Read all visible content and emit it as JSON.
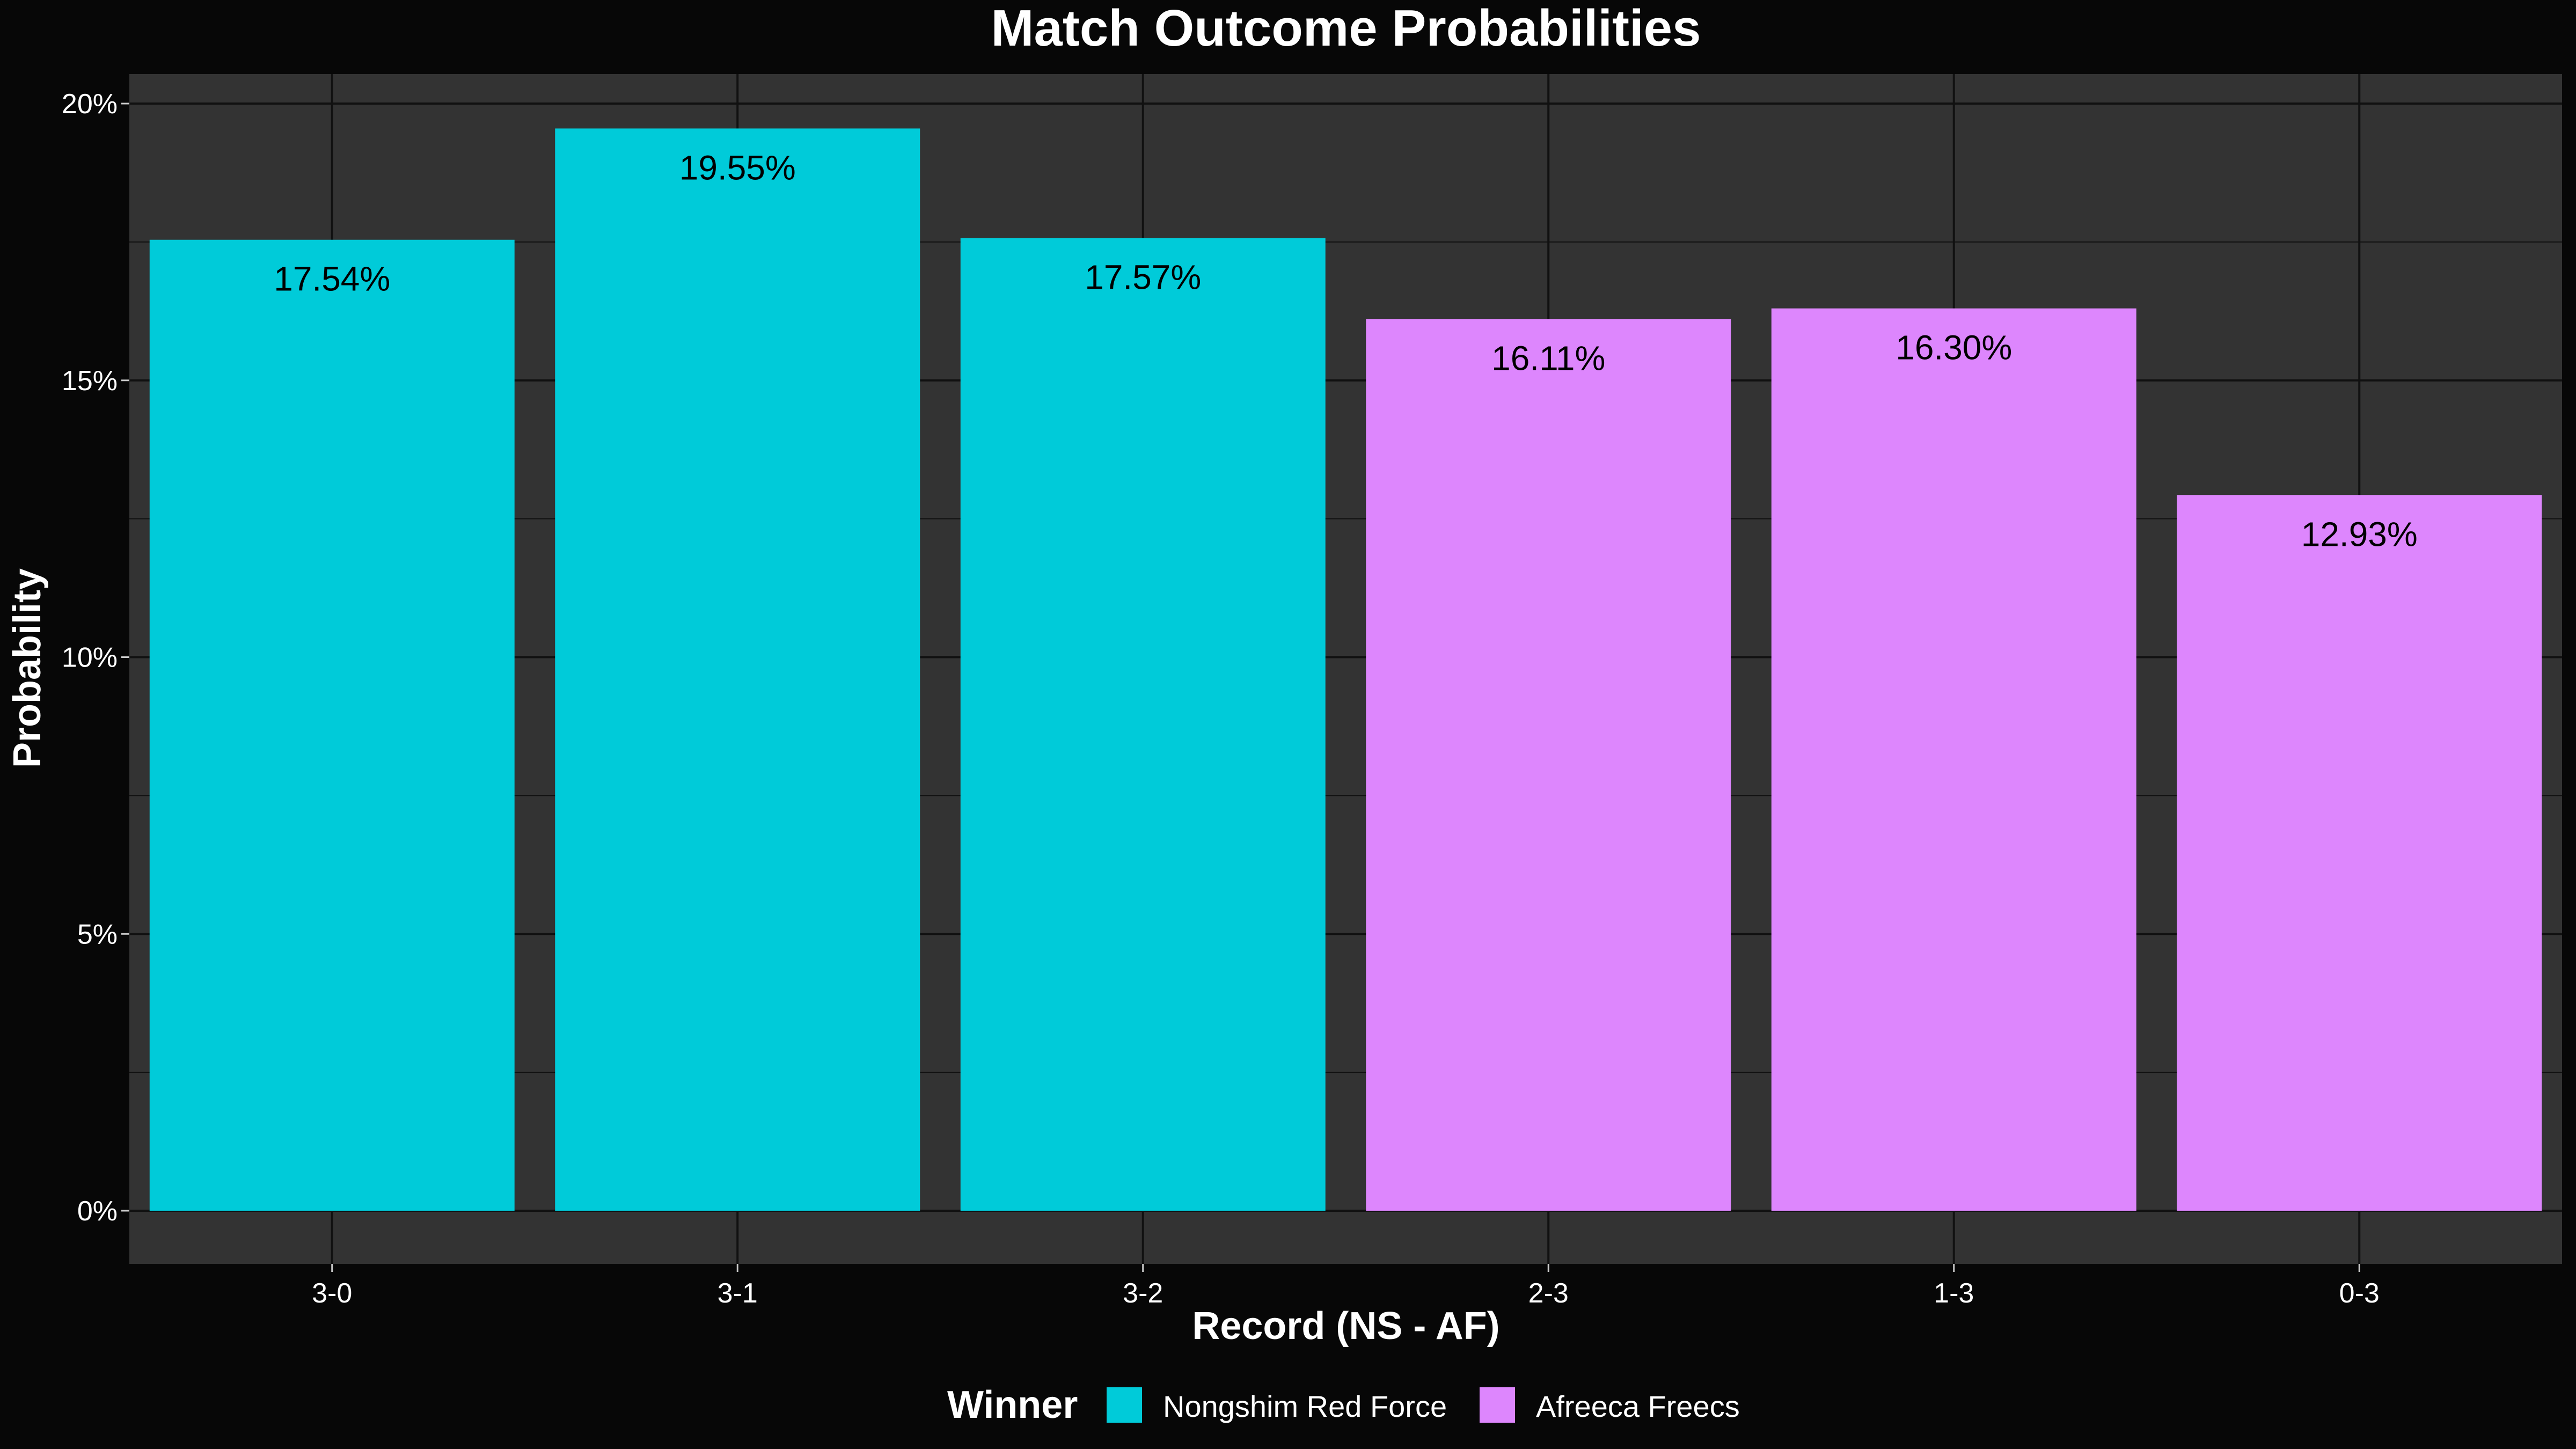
{
  "chart_data": {
    "type": "bar",
    "title": "Match Outcome Probabilities",
    "xlabel": "Record (NS - AF)",
    "ylabel": "Probability",
    "categories": [
      "3-0",
      "3-1",
      "3-2",
      "2-3",
      "1-3",
      "0-3"
    ],
    "values": [
      17.54,
      19.55,
      17.57,
      16.11,
      16.3,
      12.93
    ],
    "value_labels": [
      "17.54%",
      "19.55%",
      "17.57%",
      "16.11%",
      "16.30%",
      "12.93%"
    ],
    "winner": [
      "Nongshim Red Force",
      "Nongshim Red Force",
      "Nongshim Red Force",
      "Afreeca Freecs",
      "Afreeca Freecs",
      "Afreeca Freecs"
    ],
    "ylim": [
      0,
      20
    ],
    "y_ticks": [
      0,
      5,
      10,
      15,
      20
    ],
    "y_tick_labels": [
      "0%",
      "5%",
      "10%",
      "15%",
      "20%"
    ],
    "grid": true,
    "legend": {
      "title": "Winner",
      "position": "bottom",
      "entries": [
        {
          "name": "Nongshim Red Force",
          "color": "#00CBD9"
        },
        {
          "name": "Afreeca Freecs",
          "color": "#DD86FD"
        }
      ]
    }
  },
  "colors": {
    "background": "#070707",
    "panel": "#333333",
    "grid": "#111111",
    "text": "#FFFFFF",
    "bar_label": "#000000"
  }
}
